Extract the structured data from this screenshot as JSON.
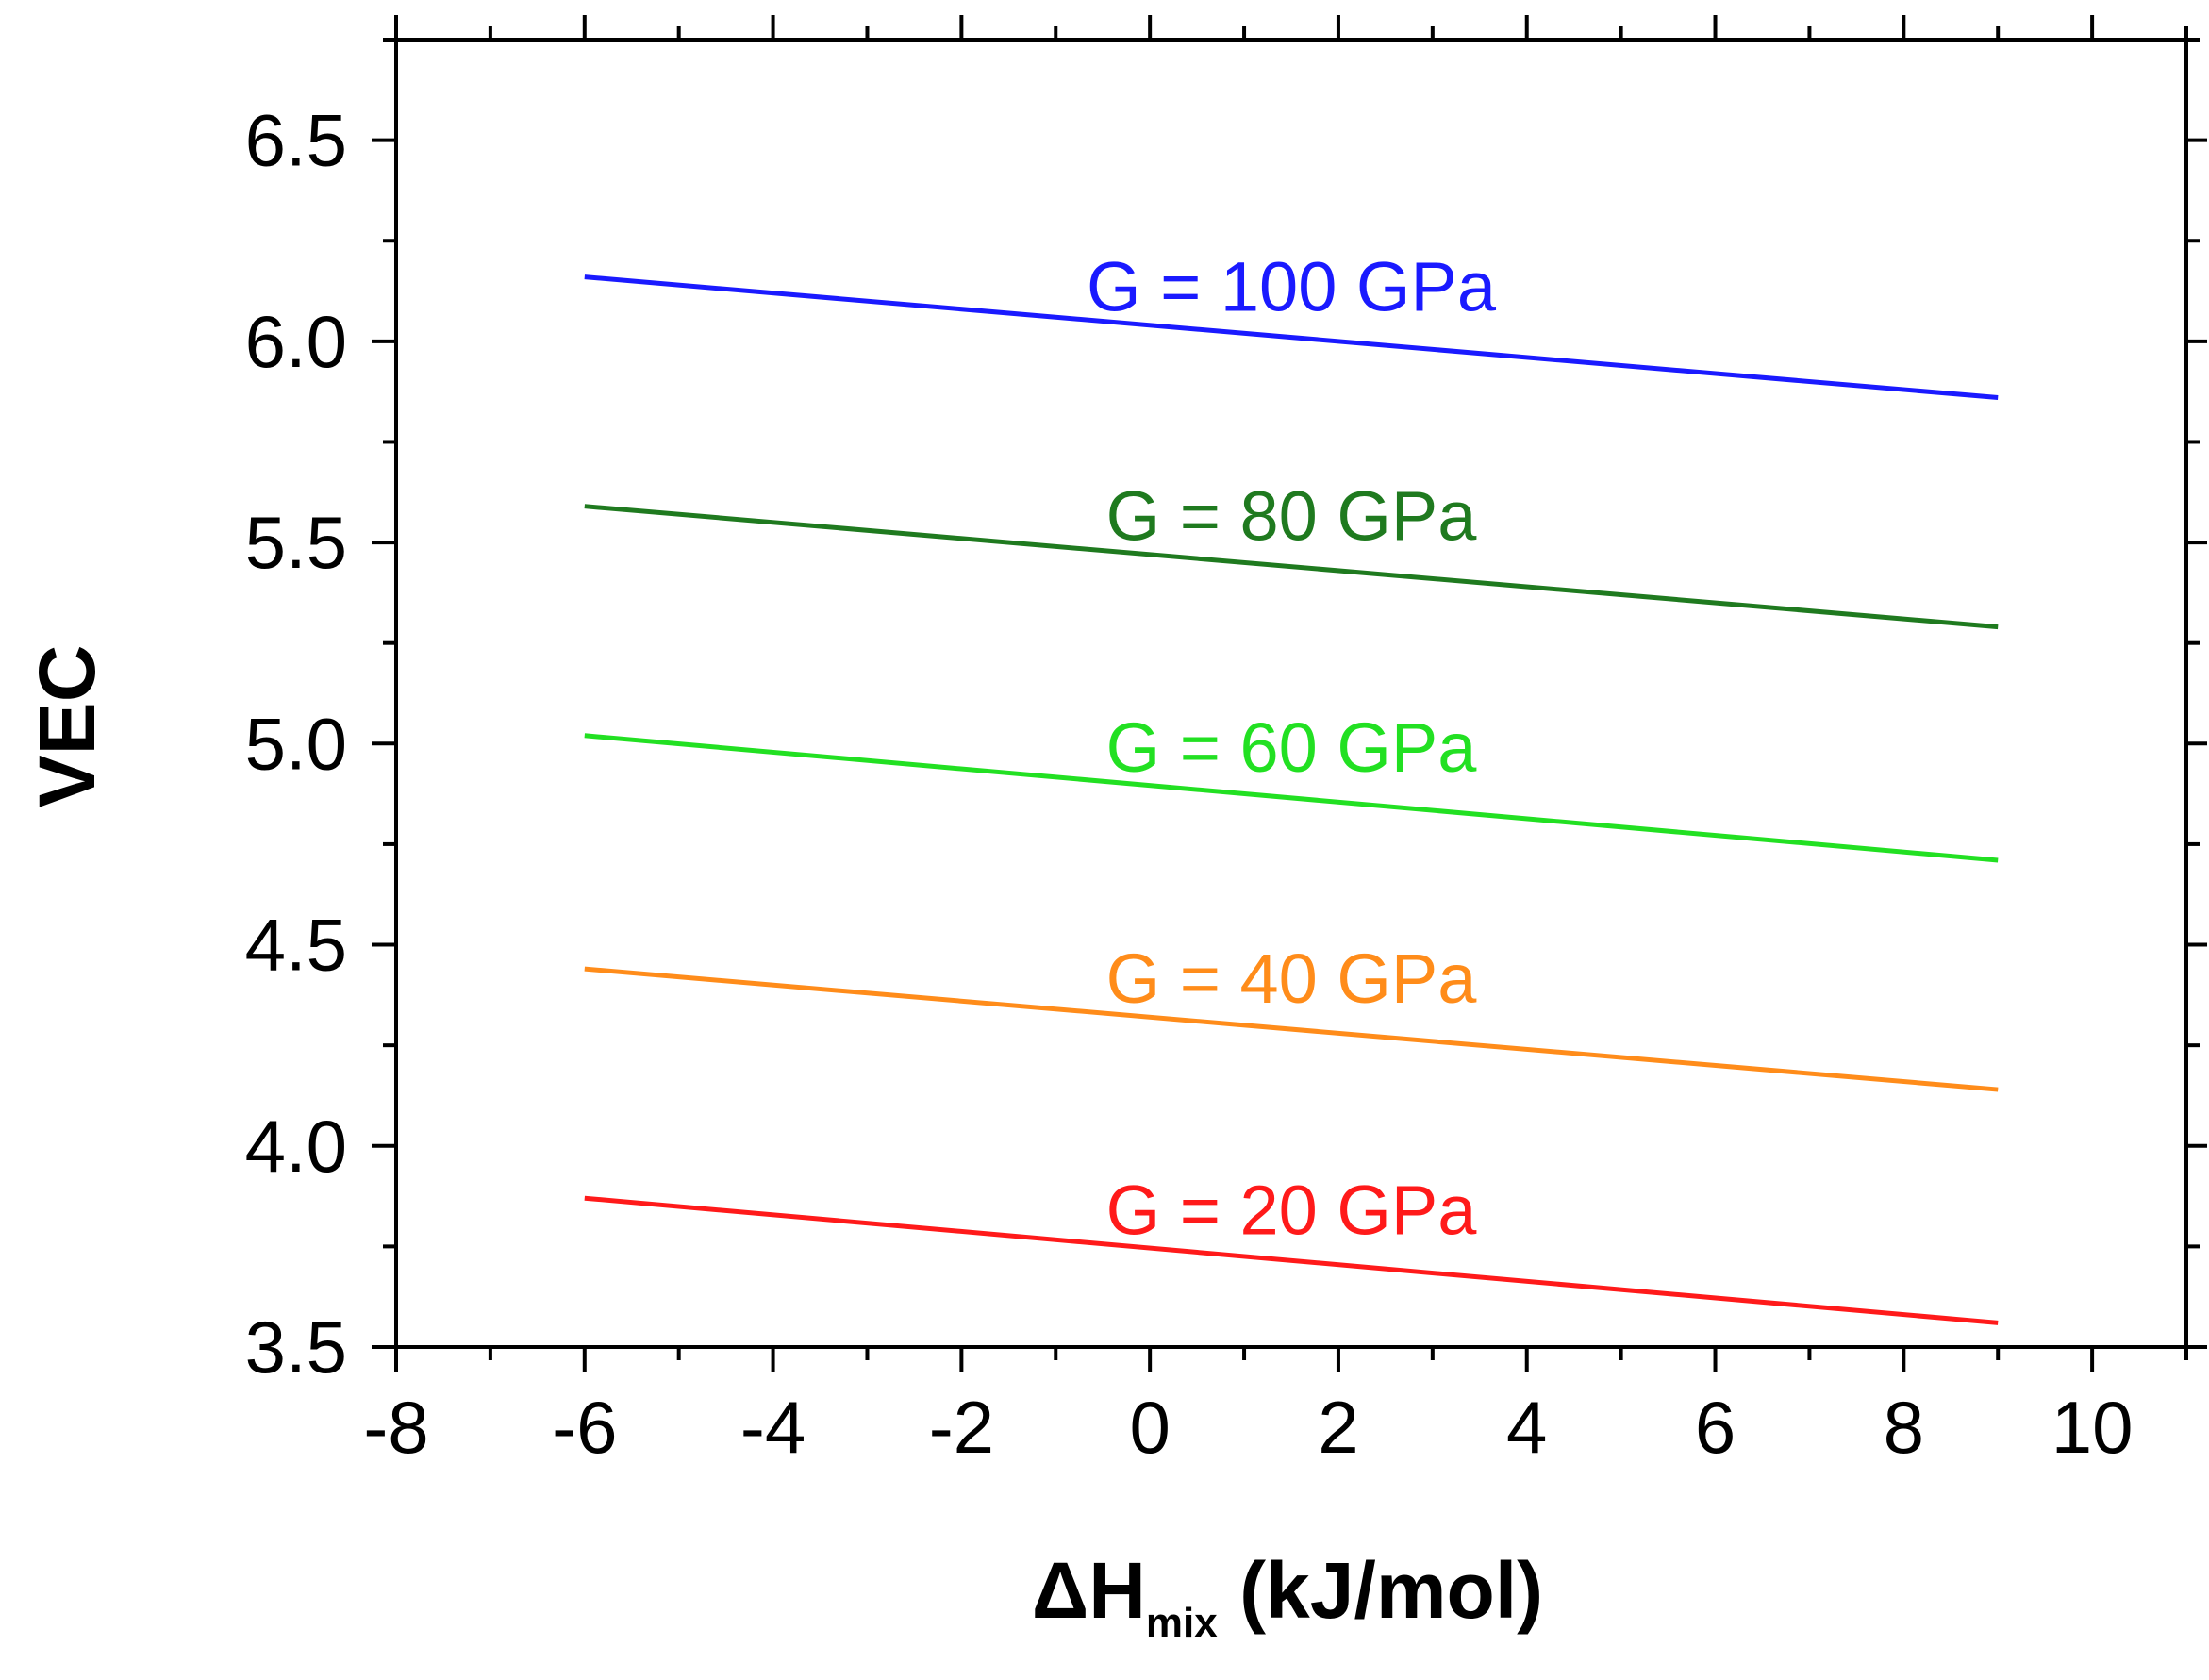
{
  "chart_data": {
    "type": "line",
    "title": "",
    "xlabel": {
      "main": "ΔH",
      "sub": "mix",
      "unit": " (kJ/mol)"
    },
    "ylabel": "VEC",
    "xlim": [
      -8,
      11
    ],
    "ylim": [
      3.5,
      6.75
    ],
    "xticks": [
      -8,
      -6,
      -4,
      -2,
      0,
      2,
      4,
      6,
      8,
      10
    ],
    "xtick_labels": [
      "-8",
      "-6",
      "-4",
      "-2",
      "0",
      "2",
      "4",
      "6",
      "8",
      "10"
    ],
    "yticks": [
      3.5,
      4.0,
      4.5,
      5.0,
      5.5,
      6.0,
      6.5
    ],
    "ytick_labels": [
      "3.5",
      "4.0",
      "4.5",
      "5.0",
      "5.5",
      "6.0",
      "6.5"
    ],
    "grid": false,
    "legend": "none",
    "series": [
      {
        "name": "G = 100 GPa",
        "color": "#1a1aff",
        "x": [
          -6,
          9
        ],
        "y": [
          6.16,
          5.86
        ]
      },
      {
        "name": "G = 80 GPa",
        "color": "#1f7a1f",
        "x": [
          -6,
          9
        ],
        "y": [
          5.59,
          5.29
        ]
      },
      {
        "name": "G = 60 GPa",
        "color": "#22e022",
        "x": [
          -6,
          9
        ],
        "y": [
          5.02,
          4.71
        ]
      },
      {
        "name": "G = 40 GPa",
        "color": "#ff8c1a",
        "x": [
          -6,
          9
        ],
        "y": [
          4.44,
          4.14
        ]
      },
      {
        "name": "G = 20 GPa",
        "color": "#ff1a1a",
        "x": [
          -6,
          9
        ],
        "y": [
          3.87,
          3.56
        ]
      }
    ]
  }
}
